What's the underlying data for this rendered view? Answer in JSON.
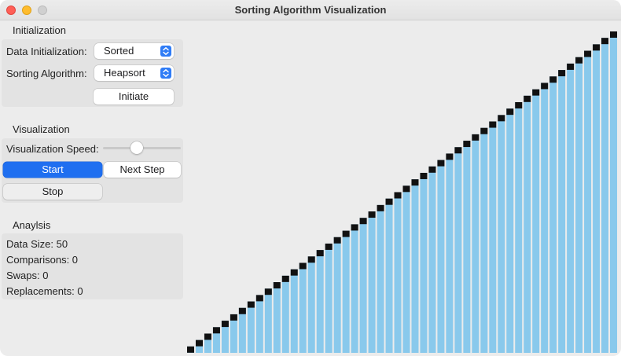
{
  "window": {
    "title": "Sorting Algorithm Visualization"
  },
  "initialization": {
    "section_label": "Initialization",
    "data_init_label": "Data Initialization:",
    "data_init_value": "Sorted",
    "algorithm_label": "Sorting Algorithm:",
    "algorithm_value": "Heapsort",
    "initiate_label": "Initiate"
  },
  "visualization": {
    "section_label": "Visualization",
    "speed_label": "Visualization Speed:",
    "speed_level": 0.42,
    "start_label": "Start",
    "next_step_label": "Next Step",
    "stop_label": "Stop"
  },
  "analysis": {
    "section_label": "Anaylsis",
    "data_size": "Data Size: 50",
    "comparisons": "Comparisons: 0",
    "swaps": "Swaps: 0",
    "replacements": "Replacements: 0"
  },
  "colors": {
    "bar": "#89c9ec",
    "marker": "#111111",
    "accent": "#1f6ff0"
  },
  "chart_data": {
    "type": "bar",
    "values": [
      1,
      2,
      3,
      4,
      5,
      6,
      7,
      8,
      9,
      10,
      11,
      12,
      13,
      14,
      15,
      16,
      17,
      18,
      19,
      20,
      21,
      22,
      23,
      24,
      25,
      26,
      27,
      28,
      29,
      30,
      31,
      32,
      33,
      34,
      35,
      36,
      37,
      38,
      39,
      40,
      41,
      42,
      43,
      44,
      45,
      46,
      47,
      48,
      49,
      50
    ],
    "ylim": [
      0,
      50
    ]
  }
}
